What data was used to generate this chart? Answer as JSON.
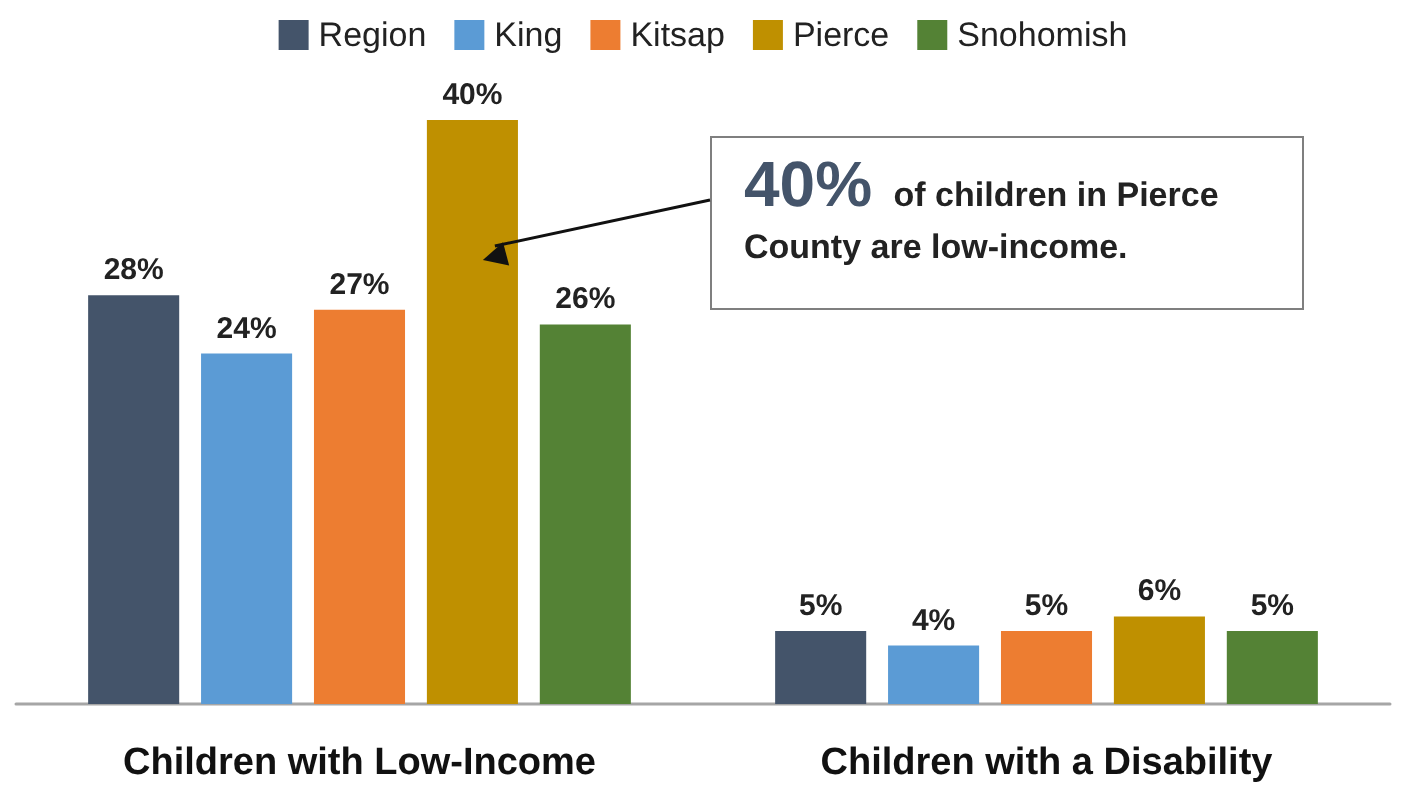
{
  "chart_data": {
    "type": "bar",
    "categories": [
      "Children with Low-Income",
      "Children with a Disability"
    ],
    "series": [
      {
        "name": "Region",
        "color": "#44546a",
        "values": [
          28,
          5
        ],
        "value_labels": [
          "28%",
          "5%"
        ]
      },
      {
        "name": "King",
        "color": "#5b9bd5",
        "values": [
          24,
          4
        ],
        "value_labels": [
          "24%",
          "4%"
        ]
      },
      {
        "name": "Kitsap",
        "color": "#ed7d31",
        "values": [
          27,
          5
        ],
        "value_labels": [
          "27%",
          "5%"
        ]
      },
      {
        "name": "Pierce",
        "color": "#bf9000",
        "values": [
          40,
          6
        ],
        "value_labels": [
          "40%",
          "6%"
        ]
      },
      {
        "name": "Snohomish",
        "color": "#548235",
        "values": [
          26,
          5
        ],
        "value_labels": [
          "26%",
          "5%"
        ]
      }
    ],
    "legend": "top",
    "annotations": [
      "40% of children in Pierce County are low-income."
    ]
  }
}
